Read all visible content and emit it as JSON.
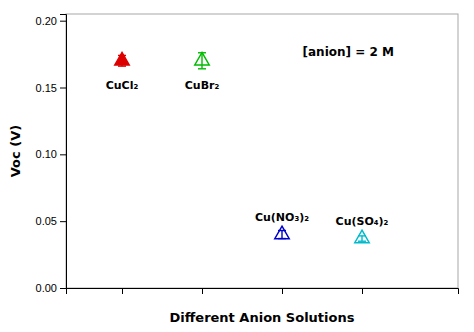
{
  "chart_data": {
    "type": "scatter",
    "xlabel": "Different Anion Solutions",
    "ylabel": "Voc (V)",
    "annotation": "[anion] = 2 M",
    "series": [
      {
        "name": "CuCl₂",
        "color": "#dd0000",
        "marker": "triangle-up",
        "x": [
          1
        ],
        "values": [
          0.17
        ],
        "errors": [
          0.004
        ]
      },
      {
        "name": "CuBr₂",
        "color": "#00bb00",
        "marker": "triangle-up-open",
        "x": [
          2
        ],
        "values": [
          0.17
        ],
        "errors": [
          0.006
        ]
      },
      {
        "name": "Cu(NO₃)₂",
        "color": "#0000cc",
        "marker": "triangle-up-open",
        "x": [
          3
        ],
        "values": [
          0.04
        ],
        "errors": [
          0.003
        ]
      },
      {
        "name": "Cu(SO₄)₂",
        "color": "#00bbcc",
        "marker": "triangle-up-open",
        "x": [
          4
        ],
        "values": [
          0.037
        ],
        "errors": [
          0.002
        ]
      }
    ],
    "xlim": [
      0.3,
      5.2
    ],
    "xticks": [
      1,
      2,
      3,
      4
    ],
    "ylim": [
      0.0,
      0.205
    ],
    "yticks": [
      {
        "value": 0.0,
        "label": "0.00"
      },
      0.05,
      {
        "value": 0.1,
        "label": "0.10"
      },
      0.15,
      {
        "value": 0.2,
        "label": "0.20"
      }
    ],
    "tick_labels": "y",
    "grid": false
  }
}
